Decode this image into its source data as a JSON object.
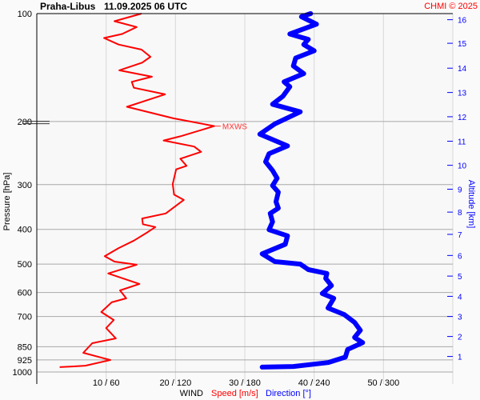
{
  "header": {
    "station": "Praha-Libus",
    "datetime": "11.09.2025 06 UTC",
    "copyright": "CHMI © 2025"
  },
  "chart_data": {
    "type": "line",
    "title": "Praha-Libus 11.09.2025 06 UTC",
    "ylabel": "Pressure [hPa]",
    "y2label": "Altitude [km]",
    "xlabel_parts": {
      "prefix": "WIND",
      "speed": "Speed [m/s]",
      "direction": "Direction [°]"
    },
    "pressure_scale": "log",
    "ylim": [
      1000,
      100
    ],
    "pressure_ticks": [
      100,
      200,
      300,
      400,
      500,
      600,
      700,
      850,
      925,
      1000
    ],
    "x_ticks": [
      {
        "speed": 10,
        "dir": 60,
        "label": "10 / 60"
      },
      {
        "speed": 20,
        "dir": 120,
        "label": "20 / 120"
      },
      {
        "speed": 30,
        "dir": 180,
        "label": "30 / 180"
      },
      {
        "speed": 40,
        "dir": 240,
        "label": "40 / 240"
      },
      {
        "speed": 50,
        "dir": 300,
        "label": "50 / 300"
      },
      {
        "speed": 60,
        "dir": 360,
        "label": ""
      }
    ],
    "xlim_speed": [
      0,
      60
    ],
    "xlim_dir": [
      0,
      360
    ],
    "altitude_ticks_km": [
      {
        "km": 1,
        "p": 905
      },
      {
        "km": 2,
        "p": 796
      },
      {
        "km": 3,
        "p": 700
      },
      {
        "km": 4,
        "p": 615
      },
      {
        "km": 5,
        "p": 540
      },
      {
        "km": 6,
        "p": 473
      },
      {
        "km": 7,
        "p": 413
      },
      {
        "km": 8,
        "p": 358
      },
      {
        "km": 9,
        "p": 309
      },
      {
        "km": 10,
        "p": 265
      },
      {
        "km": 11,
        "p": 227
      },
      {
        "km": 12,
        "p": 194
      },
      {
        "km": 13,
        "p": 166
      },
      {
        "km": 14,
        "p": 142
      },
      {
        "km": 15,
        "p": 121
      },
      {
        "km": 16,
        "p": 104
      }
    ],
    "annotation": {
      "label": "MXWS",
      "p": 206,
      "speed": 25.6
    },
    "tropopause_p": 206,
    "series": [
      {
        "name": "Speed [m/s]",
        "color": "#ff0000",
        "points": [
          [
            969,
            3.3
          ],
          [
            965,
            5.1
          ],
          [
            960,
            7.0
          ],
          [
            926,
            10.6
          ],
          [
            884,
            6.7
          ],
          [
            831,
            8.0
          ],
          [
            806,
            11.4
          ],
          [
            754,
            10.0
          ],
          [
            716,
            11.1
          ],
          [
            680,
            9.3
          ],
          [
            639,
            10.8
          ],
          [
            623,
            12.9
          ],
          [
            592,
            12.0
          ],
          [
            568,
            14.8
          ],
          [
            531,
            10.3
          ],
          [
            502,
            14.4
          ],
          [
            492,
            11.2
          ],
          [
            475,
            9.8
          ],
          [
            451,
            11.8
          ],
          [
            430,
            14.0
          ],
          [
            407,
            16.0
          ],
          [
            394,
            17.1
          ],
          [
            387,
            15.3
          ],
          [
            373,
            15.2
          ],
          [
            361,
            18.6
          ],
          [
            331,
            21.2
          ],
          [
            320,
            19.8
          ],
          [
            299,
            19.6
          ],
          [
            288,
            19.8
          ],
          [
            272,
            20.1
          ],
          [
            266,
            21.6
          ],
          [
            254,
            20.7
          ],
          [
            243,
            23.7
          ],
          [
            235,
            22.7
          ],
          [
            226,
            18.3
          ],
          [
            220,
            20.7
          ],
          [
            206,
            25.6
          ],
          [
            196,
            19.7
          ],
          [
            182,
            13.0
          ],
          [
            168,
            18.5
          ],
          [
            161,
            14.0
          ],
          [
            155,
            13.7
          ],
          [
            150,
            16.6
          ],
          [
            144,
            11.9
          ],
          [
            137,
            15.2
          ],
          [
            132,
            16.4
          ],
          [
            126,
            15.1
          ],
          [
            122,
            11.8
          ],
          [
            117,
            9.7
          ],
          [
            114,
            12.3
          ],
          [
            109,
            14.4
          ],
          [
            105,
            11.2
          ],
          [
            100,
            15.1
          ]
        ]
      },
      {
        "name": "Direction [°]",
        "color": "#0000ff",
        "points": [
          [
            969,
            195
          ],
          [
            965,
            222
          ],
          [
            941,
            252
          ],
          [
            909,
            267
          ],
          [
            865,
            269
          ],
          [
            828,
            282
          ],
          [
            801,
            275
          ],
          [
            765,
            280
          ],
          [
            727,
            275
          ],
          [
            691,
            266
          ],
          [
            663,
            252
          ],
          [
            623,
            257
          ],
          [
            604,
            247
          ],
          [
            574,
            255
          ],
          [
            548,
            250
          ],
          [
            531,
            251
          ],
          [
            518,
            235
          ],
          [
            500,
            228
          ],
          [
            492,
            206
          ],
          [
            468,
            195
          ],
          [
            440,
            215
          ],
          [
            417,
            217
          ],
          [
            401,
            201
          ],
          [
            381,
            204
          ],
          [
            361,
            202
          ],
          [
            349,
            209
          ],
          [
            335,
            207
          ],
          [
            315,
            209
          ],
          [
            302,
            204
          ],
          [
            288,
            208
          ],
          [
            274,
            204
          ],
          [
            259,
            198
          ],
          [
            246,
            201
          ],
          [
            234,
            217
          ],
          [
            217,
            193
          ],
          [
            203,
            206
          ],
          [
            188,
            228
          ],
          [
            179,
            204
          ],
          [
            170,
            213
          ],
          [
            160,
            219
          ],
          [
            155,
            214
          ],
          [
            147,
            231
          ],
          [
            140,
            222
          ],
          [
            133,
            224
          ],
          [
            127,
            240
          ],
          [
            122,
            231
          ],
          [
            118,
            235
          ],
          [
            114,
            219
          ],
          [
            107,
            242
          ],
          [
            102,
            229
          ],
          [
            100,
            237
          ]
        ]
      }
    ]
  }
}
